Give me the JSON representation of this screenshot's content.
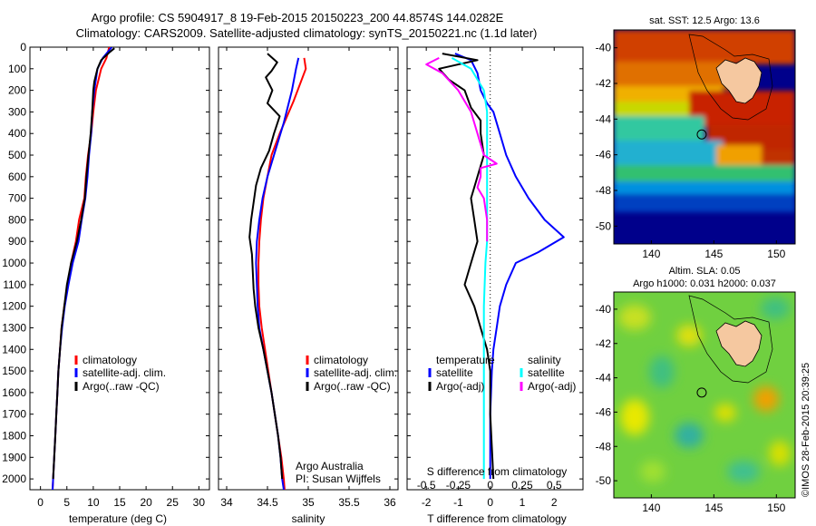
{
  "header": {
    "line1": "Argo profile: CS 5904917_8 19-Feb-2015 20150223_200 44.8574S 144.0282E",
    "line2": "Climatology: CARS2009. Satellite-adjusted climatology: synTS_20150221.nc (1.1d later)"
  },
  "colors": {
    "climatology": "#ff0000",
    "satellite": "#0000ff",
    "argo": "#000000",
    "sat_salinity": "#00ffff",
    "argo_salinity": "#ff00ff",
    "land": "#f5c8a0"
  },
  "legend": {
    "climatology": "climatology",
    "satellite_adj": "satellite-adj. clim.",
    "argo": "Argo(..raw -QC)",
    "temperature_header": "temperature",
    "salinity_header": "salinity",
    "satellite": "satellite",
    "argo_adj": "Argo(-adj)"
  },
  "annotations": {
    "institution": "Argo Australia",
    "pi": "PI: Susan Wijffels",
    "watermark": "©IMOS 28-Feb-2015 20:39:25"
  },
  "chart_data": [
    {
      "type": "line",
      "title": "",
      "xlabel": "temperature (deg C)",
      "ylabel": "",
      "xlim": [
        -2,
        32
      ],
      "ylim": [
        2050,
        0
      ],
      "xticks": [
        0,
        5,
        10,
        15,
        20,
        25,
        30
      ],
      "yticks": [
        0,
        100,
        200,
        300,
        400,
        500,
        600,
        700,
        800,
        900,
        1000,
        1100,
        1200,
        1300,
        1400,
        1500,
        1600,
        1700,
        1800,
        1900,
        2000
      ],
      "series": [
        {
          "name": "climatology",
          "color": "#ff0000",
          "points": [
            [
              13.0,
              0
            ],
            [
              12.5,
              50
            ],
            [
              11.5,
              100
            ],
            [
              10.5,
              200
            ],
            [
              10.0,
              300
            ],
            [
              9.6,
              400
            ],
            [
              9.0,
              500
            ],
            [
              8.6,
              600
            ],
            [
              8.3,
              700
            ],
            [
              7.3,
              800
            ],
            [
              6.7,
              900
            ],
            [
              5.8,
              1000
            ],
            [
              5.2,
              1100
            ],
            [
              4.5,
              1200
            ],
            [
              4.0,
              1300
            ],
            [
              3.7,
              1400
            ],
            [
              3.4,
              1500
            ],
            [
              3.2,
              1600
            ],
            [
              3.0,
              1700
            ],
            [
              2.8,
              1800
            ],
            [
              2.6,
              1900
            ],
            [
              2.4,
              2000
            ],
            [
              2.3,
              2050
            ]
          ]
        },
        {
          "name": "satellite-adj. clim.",
          "color": "#0000ff",
          "points": [
            [
              13.5,
              0
            ],
            [
              11.8,
              50
            ],
            [
              10.8,
              100
            ],
            [
              10.2,
              200
            ],
            [
              9.8,
              300
            ],
            [
              9.6,
              400
            ],
            [
              9.2,
              500
            ],
            [
              8.9,
              600
            ],
            [
              8.5,
              700
            ],
            [
              7.8,
              800
            ],
            [
              7.2,
              900
            ],
            [
              6.1,
              1000
            ],
            [
              5.3,
              1100
            ],
            [
              4.6,
              1200
            ],
            [
              4.1,
              1300
            ],
            [
              3.7,
              1400
            ],
            [
              3.4,
              1500
            ],
            [
              3.2,
              1600
            ],
            [
              3.0,
              1700
            ],
            [
              2.8,
              1800
            ],
            [
              2.6,
              1900
            ],
            [
              2.4,
              2000
            ],
            [
              2.3,
              2050
            ]
          ]
        },
        {
          "name": "Argo(..raw -QC)",
          "color": "#000000",
          "points": [
            [
              14.0,
              5
            ],
            [
              13.0,
              25
            ],
            [
              11.5,
              60
            ],
            [
              10.8,
              100
            ],
            [
              10.2,
              160
            ],
            [
              10.0,
              200
            ],
            [
              9.8,
              300
            ],
            [
              9.5,
              400
            ],
            [
              9.1,
              500
            ],
            [
              8.7,
              600
            ],
            [
              8.4,
              700
            ],
            [
              7.7,
              800
            ],
            [
              6.9,
              900
            ],
            [
              5.8,
              1000
            ],
            [
              5.0,
              1100
            ],
            [
              4.5,
              1200
            ],
            [
              4.0,
              1300
            ],
            [
              3.7,
              1400
            ],
            [
              3.4,
              1500
            ],
            [
              3.2,
              1600
            ],
            [
              3.0,
              1700
            ],
            [
              2.8,
              1800
            ],
            [
              2.6,
              1900
            ],
            [
              2.4,
              2000
            ]
          ]
        }
      ]
    },
    {
      "type": "line",
      "title": "",
      "xlabel": "salinity",
      "ylabel": "",
      "xlim": [
        33.9,
        36.1
      ],
      "ylim": [
        2050,
        0
      ],
      "xticks": [
        34,
        34.5,
        35,
        35.5,
        36
      ],
      "series": [
        {
          "name": "climatology",
          "color": "#ff0000",
          "points": [
            [
              34.95,
              50
            ],
            [
              34.97,
              100
            ],
            [
              34.82,
              250
            ],
            [
              34.65,
              400
            ],
            [
              34.55,
              500
            ],
            [
              34.5,
              600
            ],
            [
              34.45,
              700
            ],
            [
              34.42,
              800
            ],
            [
              34.4,
              900
            ],
            [
              34.39,
              1000
            ],
            [
              34.39,
              1100
            ],
            [
              34.4,
              1200
            ],
            [
              34.43,
              1300
            ],
            [
              34.47,
              1400
            ],
            [
              34.51,
              1500
            ],
            [
              34.55,
              1600
            ],
            [
              34.59,
              1700
            ],
            [
              34.63,
              1800
            ],
            [
              34.67,
              1900
            ],
            [
              34.7,
              2000
            ],
            [
              34.71,
              2050
            ]
          ]
        },
        {
          "name": "satellite-adj. clim.",
          "color": "#0000ff",
          "points": [
            [
              34.88,
              50
            ],
            [
              34.85,
              100
            ],
            [
              34.8,
              200
            ],
            [
              34.7,
              350
            ],
            [
              34.58,
              500
            ],
            [
              34.5,
              600
            ],
            [
              34.44,
              700
            ],
            [
              34.4,
              800
            ],
            [
              34.37,
              900
            ],
            [
              34.36,
              1000
            ],
            [
              34.37,
              1100
            ],
            [
              34.38,
              1200
            ],
            [
              34.4,
              1300
            ],
            [
              34.45,
              1400
            ],
            [
              34.5,
              1500
            ],
            [
              34.55,
              1600
            ],
            [
              34.59,
              1700
            ],
            [
              34.63,
              1800
            ],
            [
              34.66,
              1900
            ],
            [
              34.68,
              2000
            ],
            [
              34.7,
              2050
            ]
          ]
        },
        {
          "name": "Argo(..raw -QC)",
          "color": "#000000",
          "points": [
            [
              34.5,
              30
            ],
            [
              34.62,
              70
            ],
            [
              34.55,
              110
            ],
            [
              34.48,
              140
            ],
            [
              34.56,
              200
            ],
            [
              34.5,
              260
            ],
            [
              34.65,
              320
            ],
            [
              34.58,
              400
            ],
            [
              34.52,
              480
            ],
            [
              34.42,
              560
            ],
            [
              34.36,
              640
            ],
            [
              34.33,
              720
            ],
            [
              34.3,
              800
            ],
            [
              34.28,
              880
            ],
            [
              34.31,
              960
            ],
            [
              34.32,
              1040
            ],
            [
              34.33,
              1120
            ],
            [
              34.35,
              1200
            ],
            [
              34.39,
              1300
            ],
            [
              34.45,
              1400
            ],
            [
              34.5,
              1500
            ],
            [
              34.55,
              1600
            ],
            [
              34.59,
              1700
            ],
            [
              34.63,
              1800
            ],
            [
              34.66,
              1900
            ],
            [
              34.68,
              2000
            ]
          ]
        }
      ]
    },
    {
      "type": "line",
      "title": "",
      "xlabel": "T difference from climatology",
      "xlabel2": "S difference from climatology",
      "ylabel": "",
      "xlim": [
        -2.6,
        2.9
      ],
      "ylim": [
        2050,
        0
      ],
      "xticks": [
        -2,
        -1,
        0,
        1,
        2
      ],
      "xticks2": {
        "positions": [
          -2,
          -1,
          0,
          1,
          2
        ],
        "labels": [
          "-0.5",
          "-0.25",
          "0",
          "0.25",
          "0.5"
        ]
      },
      "series": [
        {
          "name": "temperature satellite",
          "color": "#0000ff",
          "points": [
            [
              -1.1,
              30
            ],
            [
              -0.6,
              60
            ],
            [
              -0.4,
              120
            ],
            [
              -0.3,
              200
            ],
            [
              -0.1,
              260
            ],
            [
              0.1,
              300
            ],
            [
              0.3,
              400
            ],
            [
              0.5,
              500
            ],
            [
              0.8,
              600
            ],
            [
              1.2,
              700
            ],
            [
              1.7,
              800
            ],
            [
              2.3,
              880
            ],
            [
              1.5,
              950
            ],
            [
              0.8,
              1000
            ],
            [
              0.5,
              1100
            ],
            [
              0.3,
              1200
            ],
            [
              0.2,
              1300
            ],
            [
              0.1,
              1400
            ],
            [
              0.05,
              1500
            ],
            [
              0.0,
              1700
            ],
            [
              0.0,
              2000
            ]
          ]
        },
        {
          "name": "temperature Argo(-adj)",
          "color": "#000000",
          "points": [
            [
              -1.5,
              30
            ],
            [
              -0.4,
              60
            ],
            [
              -1.6,
              100
            ],
            [
              -1.3,
              150
            ],
            [
              -0.8,
              200
            ],
            [
              -0.6,
              280
            ],
            [
              -0.3,
              340
            ],
            [
              -0.3,
              400
            ],
            [
              -0.2,
              500
            ],
            [
              -0.4,
              600
            ],
            [
              -0.6,
              700
            ],
            [
              -0.5,
              800
            ],
            [
              -0.4,
              900
            ],
            [
              -0.6,
              1000
            ],
            [
              -0.8,
              1100
            ],
            [
              -0.5,
              1200
            ],
            [
              -0.3,
              1300
            ],
            [
              -0.1,
              1400
            ],
            [
              0.0,
              1500
            ],
            [
              0.0,
              1700
            ],
            [
              0.1,
              2000
            ]
          ]
        },
        {
          "name": "salinity satellite",
          "color": "#00ffff",
          "points": [
            [
              -1.2,
              50
            ],
            [
              -0.6,
              100
            ],
            [
              -0.2,
              200
            ],
            [
              -0.1,
              300
            ],
            [
              -0.1,
              400
            ],
            [
              -0.1,
              500
            ],
            [
              -0.1,
              600
            ],
            [
              -0.1,
              700
            ],
            [
              -0.1,
              800
            ],
            [
              -0.1,
              900
            ],
            [
              -0.15,
              1000
            ],
            [
              -0.2,
              1200
            ],
            [
              -0.2,
              1400
            ],
            [
              -0.2,
              1600
            ],
            [
              -0.2,
              2000
            ]
          ]
        },
        {
          "name": "salinity Argo(-adj)",
          "color": "#ff00ff",
          "points": [
            [
              -1.6,
              50
            ],
            [
              -2.0,
              80
            ],
            [
              -1.5,
              120
            ],
            [
              -1.0,
              200
            ],
            [
              -0.6,
              300
            ],
            [
              -0.4,
              400
            ],
            [
              -0.2,
              500
            ],
            [
              0.2,
              540
            ],
            [
              -0.3,
              560
            ],
            [
              -0.3,
              600
            ],
            [
              -0.4,
              650
            ],
            [
              -0.2,
              700
            ],
            [
              -0.1,
              800
            ],
            [
              -0.1,
              900
            ]
          ]
        }
      ]
    },
    {
      "type": "heatmap",
      "title": "sat. SST: 12.5 Argo: 13.6",
      "xlim": [
        137,
        151.5
      ],
      "ylim": [
        -51,
        -39
      ],
      "xticks": [
        140,
        145,
        150
      ],
      "yticks": [
        -40,
        -42,
        -44,
        -46,
        -48,
        -50
      ],
      "profile_marker": {
        "lon": 144.03,
        "lat": -44.86
      }
    },
    {
      "type": "heatmap",
      "title": "Altim. SLA: 0.05",
      "subtitle": "Argo h1000: 0.031 h2000: 0.037",
      "xlim": [
        137,
        151.5
      ],
      "ylim": [
        -51,
        -39
      ],
      "xticks": [
        140,
        145,
        150
      ],
      "yticks": [
        -40,
        -42,
        -44,
        -46,
        -48,
        -50
      ],
      "profile_marker": {
        "lon": 144.03,
        "lat": -44.86
      }
    }
  ]
}
